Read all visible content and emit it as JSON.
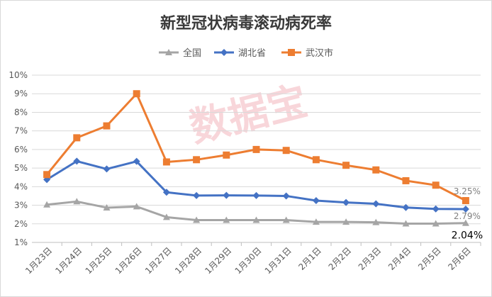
{
  "chart_data": {
    "type": "line",
    "title": "新型冠状病毒滚动病死率",
    "watermark": "数据宝",
    "categories": [
      "1月23日",
      "1月24日",
      "1月25日",
      "1月26日",
      "1月27日",
      "1月28日",
      "1月29日",
      "1月30日",
      "1月31日",
      "2月1日",
      "2月2日",
      "2月3日",
      "2月4日",
      "2月5日",
      "2月6日"
    ],
    "y_ticks": [
      "1%",
      "2%",
      "3%",
      "4%",
      "5%",
      "6%",
      "7%",
      "8%",
      "9%",
      "10%"
    ],
    "ylim": [
      1,
      10
    ],
    "grid": true,
    "legend_position": "top-center",
    "series": [
      {
        "name": "全国",
        "color": "#a5a5a5",
        "marker": "triangle",
        "values": [
          3.03,
          3.2,
          2.87,
          2.93,
          2.36,
          2.2,
          2.2,
          2.2,
          2.2,
          2.1,
          2.1,
          2.08,
          2.01,
          2.01,
          2.04
        ]
      },
      {
        "name": "湖北省",
        "color": "#4472c4",
        "marker": "diamond",
        "values": [
          4.38,
          5.37,
          4.95,
          5.36,
          3.7,
          3.52,
          3.53,
          3.52,
          3.5,
          3.25,
          3.15,
          3.08,
          2.88,
          2.8,
          2.79
        ]
      },
      {
        "name": "武汉市",
        "color": "#ed7d31",
        "marker": "square",
        "values": [
          4.65,
          6.63,
          7.27,
          9.0,
          5.33,
          5.45,
          5.7,
          6.0,
          5.95,
          5.45,
          5.15,
          4.9,
          4.32,
          4.08,
          3.25
        ]
      }
    ],
    "end_labels": [
      {
        "series": 2,
        "text": "3.25%"
      },
      {
        "series": 1,
        "text": "2.79%"
      },
      {
        "series": 0,
        "text": "2.04%"
      }
    ]
  }
}
